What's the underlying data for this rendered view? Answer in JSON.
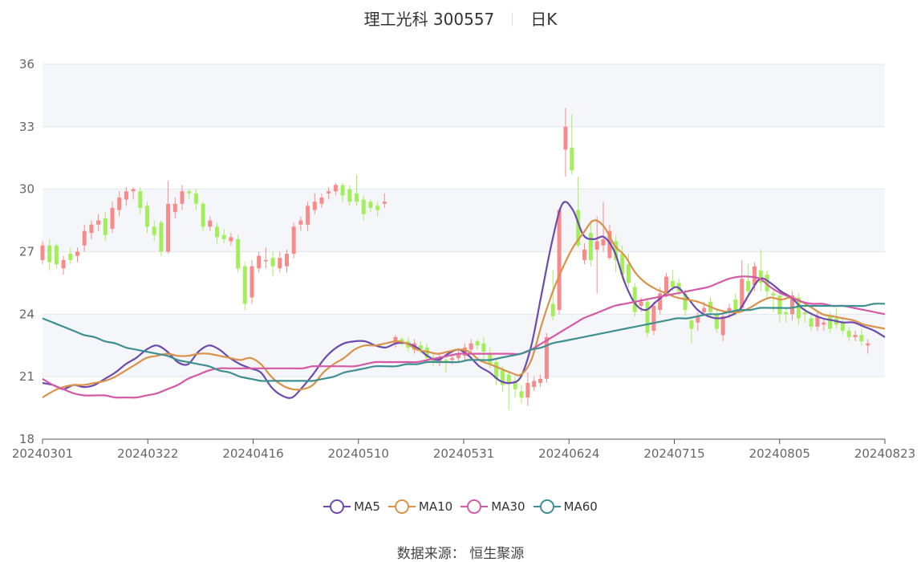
{
  "title": {
    "name": "理工光科 300557",
    "period": "日K"
  },
  "source": "数据来源：  恒生聚源",
  "colors": {
    "up": "#f98a8a",
    "down": "#a4ee5c",
    "grid": "#e3e6ee",
    "band": "#f5f6fa",
    "axis": "#666666"
  },
  "chart_data": {
    "type": "candlestick",
    "x_ticks": [
      "20240301",
      "20240322",
      "20240416",
      "20240510",
      "20240531",
      "20240624",
      "20240715",
      "20240805",
      "20240823"
    ],
    "ylim": [
      18,
      36
    ],
    "y_ticks": [
      18,
      21,
      24,
      27,
      30,
      33,
      36
    ],
    "ma_series": [
      {
        "name": "MA5",
        "color": "#6d4aad",
        "values": [
          20.7,
          20.6,
          20.4,
          20.6,
          20.5,
          20.6,
          20.9,
          21.2,
          21.6,
          21.9,
          22.3,
          22.5,
          22.2,
          21.7,
          21.6,
          22.2,
          22.5,
          22.3,
          21.9,
          21.6,
          21.4,
          21.2,
          20.5,
          20.1,
          20.0,
          20.5,
          21.1,
          21.8,
          22.3,
          22.6,
          22.7,
          22.7,
          22.5,
          22.4,
          22.6,
          22.6,
          22.4,
          22.0,
          21.8,
          22.1,
          22.3,
          22.0,
          21.5,
          21.2,
          20.8,
          20.7,
          21.0,
          22.5,
          25.0,
          27.5,
          29.3,
          29.0,
          27.8,
          27.6,
          27.7,
          27.0,
          25.5,
          24.5,
          24.2,
          24.6,
          25.0,
          25.3,
          24.8,
          24.2,
          23.9,
          23.8,
          23.9,
          24.2,
          25.0,
          25.7,
          25.5,
          25.1,
          24.8,
          24.3,
          24.0,
          23.8,
          23.7,
          23.6,
          23.6,
          23.4,
          23.2,
          22.9
        ]
      },
      {
        "name": "MA10",
        "color": "#d9924a",
        "values": [
          20.0,
          20.3,
          20.5,
          20.6,
          20.6,
          20.7,
          20.8,
          21.0,
          21.3,
          21.6,
          21.9,
          22.0,
          22.1,
          22.0,
          22.0,
          22.1,
          22.1,
          22.0,
          21.9,
          21.8,
          21.9,
          21.6,
          21.0,
          20.6,
          20.4,
          20.4,
          20.6,
          21.2,
          21.6,
          21.9,
          22.3,
          22.5,
          22.5,
          22.6,
          22.7,
          22.6,
          22.3,
          22.2,
          22.1,
          22.2,
          22.3,
          22.2,
          21.8,
          21.6,
          21.4,
          21.2,
          21.1,
          21.8,
          23.5,
          25.0,
          26.2,
          27.2,
          27.9,
          28.5,
          28.2,
          27.3,
          26.8,
          26.0,
          25.5,
          25.2,
          25.0,
          24.8,
          24.7,
          24.6,
          24.4,
          24.2,
          24.1,
          24.1,
          24.3,
          24.6,
          24.8,
          24.7,
          24.8,
          24.6,
          24.3,
          24.0,
          23.9,
          23.8,
          23.7,
          23.5,
          23.4,
          23.3
        ]
      },
      {
        "name": "MA30",
        "color": "#d45aa6",
        "values": [
          20.9,
          20.6,
          20.4,
          20.2,
          20.1,
          20.1,
          20.1,
          20.0,
          20.0,
          20.0,
          20.1,
          20.2,
          20.4,
          20.6,
          20.9,
          21.1,
          21.3,
          21.4,
          21.4,
          21.4,
          21.4,
          21.4,
          21.4,
          21.4,
          21.4,
          21.4,
          21.5,
          21.5,
          21.5,
          21.5,
          21.5,
          21.6,
          21.7,
          21.7,
          21.7,
          21.7,
          21.7,
          21.8,
          21.9,
          22.0,
          22.1,
          22.1,
          22.1,
          22.1,
          22.1,
          22.1,
          22.1,
          22.3,
          22.6,
          22.9,
          23.2,
          23.5,
          23.8,
          24.0,
          24.2,
          24.4,
          24.5,
          24.6,
          24.7,
          24.8,
          24.9,
          25.0,
          25.1,
          25.2,
          25.3,
          25.5,
          25.7,
          25.8,
          25.8,
          25.7,
          25.3,
          25.0,
          24.8,
          24.6,
          24.5,
          24.5,
          24.4,
          24.4,
          24.3,
          24.2,
          24.1,
          24.0
        ]
      },
      {
        "name": "MA60",
        "color": "#3e9090",
        "values": [
          23.8,
          23.6,
          23.4,
          23.2,
          23.0,
          22.9,
          22.7,
          22.6,
          22.4,
          22.3,
          22.2,
          22.1,
          22.0,
          21.8,
          21.7,
          21.6,
          21.5,
          21.3,
          21.2,
          21.0,
          20.9,
          20.8,
          20.8,
          20.8,
          20.8,
          20.8,
          20.8,
          20.9,
          21.0,
          21.2,
          21.3,
          21.4,
          21.5,
          21.5,
          21.5,
          21.6,
          21.6,
          21.7,
          21.7,
          21.7,
          21.7,
          21.8,
          21.8,
          21.8,
          21.9,
          22.0,
          22.1,
          22.3,
          22.4,
          22.6,
          22.7,
          22.8,
          22.9,
          23.0,
          23.1,
          23.2,
          23.3,
          23.4,
          23.5,
          23.6,
          23.7,
          23.8,
          23.8,
          23.9,
          24.0,
          24.0,
          24.1,
          24.2,
          24.2,
          24.3,
          24.3,
          24.3,
          24.3,
          24.4,
          24.4,
          24.4,
          24.4,
          24.4,
          24.4,
          24.4,
          24.5,
          24.5
        ]
      }
    ],
    "candles": [
      {
        "o": 26.6,
        "c": 27.3,
        "h": 27.5,
        "l": 26.4
      },
      {
        "o": 27.3,
        "c": 26.5,
        "h": 27.6,
        "l": 26.1
      },
      {
        "o": 27.3,
        "c": 26.4,
        "h": 27.4,
        "l": 26.2
      },
      {
        "o": 26.2,
        "c": 26.6,
        "h": 26.8,
        "l": 25.9
      },
      {
        "o": 26.9,
        "c": 26.6,
        "h": 27.2,
        "l": 26.4
      },
      {
        "o": 26.8,
        "c": 27.0,
        "h": 27.2,
        "l": 26.5
      },
      {
        "o": 27.3,
        "c": 28.0,
        "h": 28.3,
        "l": 27.0
      },
      {
        "o": 27.9,
        "c": 28.3,
        "h": 28.5,
        "l": 27.6
      },
      {
        "o": 28.3,
        "c": 28.5,
        "h": 28.8,
        "l": 28.0
      },
      {
        "o": 28.6,
        "c": 27.8,
        "h": 28.9,
        "l": 27.5
      },
      {
        "o": 28.1,
        "c": 29.1,
        "h": 29.4,
        "l": 27.9
      },
      {
        "o": 29.0,
        "c": 29.6,
        "h": 29.9,
        "l": 28.7
      },
      {
        "o": 29.5,
        "c": 29.9,
        "h": 30.1,
        "l": 29.2
      },
      {
        "o": 29.9,
        "c": 30.0,
        "h": 30.1,
        "l": 29.5
      },
      {
        "o": 29.9,
        "c": 29.1,
        "h": 30.1,
        "l": 28.8
      },
      {
        "o": 29.2,
        "c": 28.2,
        "h": 29.4,
        "l": 27.9
      },
      {
        "o": 28.2,
        "c": 27.8,
        "h": 28.5,
        "l": 27.5
      },
      {
        "o": 28.4,
        "c": 27.0,
        "h": 28.5,
        "l": 26.8
      },
      {
        "o": 27.0,
        "c": 29.3,
        "h": 30.4,
        "l": 26.9
      },
      {
        "o": 28.9,
        "c": 29.3,
        "h": 29.6,
        "l": 28.6
      },
      {
        "o": 29.3,
        "c": 29.9,
        "h": 30.2,
        "l": 29.0
      },
      {
        "o": 29.9,
        "c": 29.8,
        "h": 30.0,
        "l": 29.5
      },
      {
        "o": 29.8,
        "c": 29.3,
        "h": 30.0,
        "l": 29.0
      },
      {
        "o": 29.3,
        "c": 28.2,
        "h": 29.4,
        "l": 28.0
      },
      {
        "o": 28.2,
        "c": 28.5,
        "h": 28.7,
        "l": 28.0
      },
      {
        "o": 28.2,
        "c": 27.7,
        "h": 28.4,
        "l": 27.4
      },
      {
        "o": 27.8,
        "c": 27.6,
        "h": 28.1,
        "l": 27.4
      },
      {
        "o": 27.5,
        "c": 27.7,
        "h": 27.9,
        "l": 27.3
      },
      {
        "o": 27.6,
        "c": 26.2,
        "h": 27.8,
        "l": 26.0
      },
      {
        "o": 26.3,
        "c": 24.5,
        "h": 26.5,
        "l": 24.2
      },
      {
        "o": 24.8,
        "c": 26.3,
        "h": 26.6,
        "l": 24.5
      },
      {
        "o": 26.2,
        "c": 26.8,
        "h": 27.0,
        "l": 26.0
      },
      {
        "o": 26.6,
        "c": 26.6,
        "h": 27.2,
        "l": 26.2
      },
      {
        "o": 26.7,
        "c": 26.3,
        "h": 27.0,
        "l": 25.8
      },
      {
        "o": 26.2,
        "c": 26.7,
        "h": 27.0,
        "l": 26.0
      },
      {
        "o": 26.3,
        "c": 26.9,
        "h": 27.1,
        "l": 26.0
      },
      {
        "o": 26.9,
        "c": 28.2,
        "h": 28.4,
        "l": 26.7
      },
      {
        "o": 28.3,
        "c": 28.5,
        "h": 28.7,
        "l": 28.0
      },
      {
        "o": 28.3,
        "c": 29.2,
        "h": 29.4,
        "l": 28.0
      },
      {
        "o": 29.0,
        "c": 29.4,
        "h": 29.8,
        "l": 28.8
      },
      {
        "o": 29.3,
        "c": 29.6,
        "h": 29.8,
        "l": 29.1
      },
      {
        "o": 29.8,
        "c": 29.9,
        "h": 30.1,
        "l": 29.5
      },
      {
        "o": 29.9,
        "c": 30.2,
        "h": 30.3,
        "l": 29.7
      },
      {
        "o": 30.2,
        "c": 29.7,
        "h": 30.3,
        "l": 29.4
      },
      {
        "o": 30.0,
        "c": 29.4,
        "h": 30.2,
        "l": 29.2
      },
      {
        "o": 29.8,
        "c": 29.4,
        "h": 30.7,
        "l": 29.2
      },
      {
        "o": 29.5,
        "c": 28.8,
        "h": 29.7,
        "l": 28.5
      },
      {
        "o": 29.4,
        "c": 29.1,
        "h": 29.5,
        "l": 28.9
      },
      {
        "o": 29.2,
        "c": 29.0,
        "h": 29.4,
        "l": 28.7
      },
      {
        "o": 29.3,
        "c": 29.4,
        "h": 29.8,
        "l": 29.1
      }
    ],
    "candles2": [
      {
        "o": 22.6,
        "c": 22.9,
        "h": 23.0,
        "l": 22.4
      },
      {
        "o": 22.8,
        "c": 22.7,
        "h": 22.9,
        "l": 22.5
      },
      {
        "o": 22.7,
        "c": 22.4,
        "h": 22.9,
        "l": 22.2
      },
      {
        "o": 22.3,
        "c": 22.6,
        "h": 22.8,
        "l": 22.1
      },
      {
        "o": 22.5,
        "c": 22.3,
        "h": 22.7,
        "l": 22.1
      },
      {
        "o": 22.4,
        "c": 21.9,
        "h": 22.6,
        "l": 21.7
      },
      {
        "o": 21.9,
        "c": 21.7,
        "h": 22.1,
        "l": 21.5
      },
      {
        "o": 21.7,
        "c": 21.9,
        "h": 22.1,
        "l": 21.5
      },
      {
        "o": 21.8,
        "c": 21.7,
        "h": 22.0,
        "l": 21.2
      },
      {
        "o": 21.8,
        "c": 21.9,
        "h": 22.1,
        "l": 21.6
      },
      {
        "o": 21.9,
        "c": 22.1,
        "h": 22.3,
        "l": 21.7
      },
      {
        "o": 22.0,
        "c": 22.4,
        "h": 22.6,
        "l": 21.8
      },
      {
        "o": 22.3,
        "c": 22.6,
        "h": 22.8,
        "l": 22.1
      },
      {
        "o": 22.7,
        "c": 22.5,
        "h": 22.8,
        "l": 22.3
      },
      {
        "o": 22.6,
        "c": 22.2,
        "h": 22.9,
        "l": 21.8
      },
      {
        "o": 22.1,
        "c": 21.6,
        "h": 22.4,
        "l": 21.4
      },
      {
        "o": 21.7,
        "c": 20.9,
        "h": 21.9,
        "l": 20.6
      },
      {
        "o": 21.3,
        "c": 20.6,
        "h": 21.5,
        "l": 20.3
      },
      {
        "o": 21.1,
        "c": 20.7,
        "h": 21.3,
        "l": 19.4
      },
      {
        "o": 20.8,
        "c": 20.4,
        "h": 21.0,
        "l": 20.0
      },
      {
        "o": 20.3,
        "c": 20.0,
        "h": 20.6,
        "l": 19.7
      },
      {
        "o": 20.0,
        "c": 20.7,
        "h": 21.2,
        "l": 19.6
      },
      {
        "o": 20.5,
        "c": 20.8,
        "h": 21.0,
        "l": 20.3
      },
      {
        "o": 20.7,
        "c": 20.9,
        "h": 21.1,
        "l": 20.5
      },
      {
        "o": 20.9,
        "c": 22.9,
        "h": 23.1,
        "l": 20.7
      },
      {
        "o": 24.5,
        "c": 23.9,
        "h": 26.1,
        "l": 23.7
      },
      {
        "o": 24.2,
        "c": 29.0,
        "h": 29.1,
        "l": 24.0
      },
      {
        "o": 31.9,
        "c": 33.0,
        "h": 33.9,
        "l": 30.6
      },
      {
        "o": 32.0,
        "c": 30.9,
        "h": 33.6,
        "l": 30.7
      },
      {
        "o": 29.0,
        "c": 27.3,
        "h": 30.6,
        "l": 27.2
      },
      {
        "o": 26.6,
        "c": 27.1,
        "h": 27.4,
        "l": 26.4
      },
      {
        "o": 27.9,
        "c": 26.6,
        "h": 28.5,
        "l": 26.3
      },
      {
        "o": 27.1,
        "c": 27.5,
        "h": 28.7,
        "l": 25.0
      },
      {
        "o": 27.3,
        "c": 27.6,
        "h": 29.4,
        "l": 27.0
      },
      {
        "o": 26.7,
        "c": 28.0,
        "h": 28.3,
        "l": 26.6
      },
      {
        "o": 27.5,
        "c": 26.6,
        "h": 27.8,
        "l": 26.0
      },
      {
        "o": 26.9,
        "c": 25.9,
        "h": 27.3,
        "l": 25.7
      },
      {
        "o": 26.4,
        "c": 25.5,
        "h": 26.9,
        "l": 25.3
      },
      {
        "o": 25.3,
        "c": 24.1,
        "h": 25.5,
        "l": 23.9
      },
      {
        "o": 24.4,
        "c": 24.6,
        "h": 24.8,
        "l": 24.1
      },
      {
        "o": 24.6,
        "c": 23.1,
        "h": 24.8,
        "l": 22.9
      },
      {
        "o": 23.2,
        "c": 24.4,
        "h": 24.6,
        "l": 23.0
      },
      {
        "o": 24.2,
        "c": 25.0,
        "h": 25.3,
        "l": 24.0
      },
      {
        "o": 25.0,
        "c": 25.8,
        "h": 26.0,
        "l": 24.8
      },
      {
        "o": 25.6,
        "c": 25.3,
        "h": 26.1,
        "l": 25.1
      },
      {
        "o": 25.5,
        "c": 25.1,
        "h": 25.7,
        "l": 24.9
      },
      {
        "o": 25.0,
        "c": 24.2,
        "h": 25.2,
        "l": 23.9
      },
      {
        "o": 23.7,
        "c": 23.3,
        "h": 23.9,
        "l": 22.6
      },
      {
        "o": 23.6,
        "c": 23.9,
        "h": 24.1,
        "l": 23.2
      },
      {
        "o": 24.1,
        "c": 24.3,
        "h": 24.6,
        "l": 23.9
      },
      {
        "o": 24.6,
        "c": 24.1,
        "h": 24.8,
        "l": 23.9
      },
      {
        "o": 24.0,
        "c": 23.3,
        "h": 24.2,
        "l": 23.1
      },
      {
        "o": 23.0,
        "c": 23.9,
        "h": 24.1,
        "l": 22.7
      },
      {
        "o": 24.1,
        "c": 24.3,
        "h": 24.5,
        "l": 23.8
      },
      {
        "o": 24.7,
        "c": 24.2,
        "h": 25.0,
        "l": 23.9
      },
      {
        "o": 24.3,
        "c": 25.7,
        "h": 26.6,
        "l": 24.1
      },
      {
        "o": 25.6,
        "c": 25.1,
        "h": 26.4,
        "l": 24.8
      },
      {
        "o": 25.4,
        "c": 26.3,
        "h": 26.5,
        "l": 25.1
      },
      {
        "o": 26.1,
        "c": 25.5,
        "h": 27.1,
        "l": 25.1
      },
      {
        "o": 25.9,
        "c": 25.1,
        "h": 26.1,
        "l": 24.8
      },
      {
        "o": 25.0,
        "c": 24.9,
        "h": 25.2,
        "l": 24.1
      },
      {
        "o": 24.9,
        "c": 24.0,
        "h": 25.1,
        "l": 23.6
      },
      {
        "o": 24.1,
        "c": 24.0,
        "h": 24.3,
        "l": 23.6
      },
      {
        "o": 24.0,
        "c": 24.9,
        "h": 25.1,
        "l": 23.7
      },
      {
        "o": 24.8,
        "c": 23.8,
        "h": 25.0,
        "l": 23.5
      },
      {
        "o": 24.1,
        "c": 24.0,
        "h": 24.4,
        "l": 23.6
      },
      {
        "o": 23.8,
        "c": 23.4,
        "h": 24.0,
        "l": 23.2
      },
      {
        "o": 23.4,
        "c": 23.9,
        "h": 24.1,
        "l": 23.2
      },
      {
        "o": 23.5,
        "c": 23.6,
        "h": 23.8,
        "l": 23.2
      },
      {
        "o": 23.9,
        "c": 23.3,
        "h": 24.1,
        "l": 23.1
      },
      {
        "o": 23.8,
        "c": 23.5,
        "h": 24.3,
        "l": 23.3
      },
      {
        "o": 23.6,
        "c": 23.2,
        "h": 23.8,
        "l": 23.0
      },
      {
        "o": 23.2,
        "c": 22.9,
        "h": 23.4,
        "l": 22.7
      },
      {
        "o": 22.9,
        "c": 23.0,
        "h": 23.2,
        "l": 22.7
      },
      {
        "o": 23.0,
        "c": 22.7,
        "h": 23.3,
        "l": 22.5
      },
      {
        "o": 22.5,
        "c": 22.6,
        "h": 22.8,
        "l": 22.1
      }
    ]
  }
}
